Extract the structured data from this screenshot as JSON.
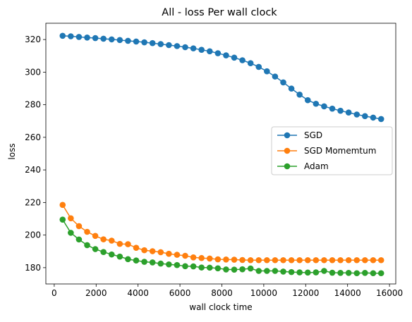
{
  "chart_data": {
    "type": "line",
    "title": "All - loss Per wall clock",
    "xlabel": "wall clock time",
    "ylabel": "loss",
    "xlim": [
      -400,
      16300
    ],
    "ylim": [
      170,
      330
    ],
    "xticks": [
      0,
      2000,
      4000,
      6000,
      8000,
      10000,
      12000,
      14000,
      16000
    ],
    "yticks": [
      180,
      200,
      220,
      240,
      260,
      280,
      300,
      320
    ],
    "legend_position": "center-right",
    "grid": false,
    "x": [
      400,
      790,
      1180,
      1570,
      1960,
      2350,
      2740,
      3130,
      3520,
      3910,
      4300,
      4690,
      5080,
      5470,
      5860,
      6250,
      6640,
      7030,
      7420,
      7810,
      8200,
      8590,
      8980,
      9370,
      9760,
      10150,
      10540,
      10930,
      11320,
      11710,
      12100,
      12490,
      12880,
      13270,
      13660,
      14050,
      14440,
      14830,
      15220,
      15600
    ],
    "series": [
      {
        "name": "SGD",
        "color": "#1f77b4",
        "values": [
          322.3,
          322.0,
          321.6,
          321.2,
          320.9,
          320.5,
          320.1,
          319.7,
          319.2,
          318.8,
          318.3,
          317.8,
          317.2,
          316.6,
          316.0,
          315.3,
          314.6,
          313.7,
          312.8,
          311.6,
          310.3,
          308.9,
          307.3,
          305.5,
          303.2,
          300.5,
          297.3,
          293.7,
          289.9,
          286.2,
          282.8,
          280.6,
          279.0,
          277.6,
          276.3,
          275.2,
          274.0,
          273.0,
          272.1,
          271.2
        ]
      },
      {
        "name": "SGD Momemtum",
        "color": "#ff7f0e",
        "values": [
          218.5,
          210.3,
          205.5,
          202.0,
          199.5,
          197.4,
          196.6,
          194.6,
          194.4,
          192.2,
          190.7,
          190.1,
          189.5,
          188.5,
          187.9,
          187.3,
          186.3,
          185.9,
          185.6,
          185.1,
          185.0,
          184.9,
          184.7,
          184.6,
          184.6,
          184.6,
          184.6,
          184.6,
          184.6,
          184.6,
          184.6,
          184.6,
          184.6,
          184.6,
          184.6,
          184.6,
          184.6,
          184.6,
          184.6,
          184.6
        ]
      },
      {
        "name": "Adam",
        "color": "#2ca02c",
        "values": [
          209.5,
          201.4,
          197.3,
          193.8,
          191.4,
          189.6,
          188.1,
          186.8,
          185.2,
          184.4,
          183.6,
          183.2,
          182.5,
          182.0,
          181.6,
          180.9,
          180.8,
          180.1,
          180.0,
          179.6,
          178.9,
          178.8,
          179.0,
          179.5,
          178.0,
          178.0,
          178.0,
          177.6,
          177.3,
          177.1,
          177.0,
          177.1,
          178.0,
          176.9,
          176.8,
          176.8,
          176.6,
          176.8,
          176.6,
          176.6
        ]
      }
    ]
  }
}
